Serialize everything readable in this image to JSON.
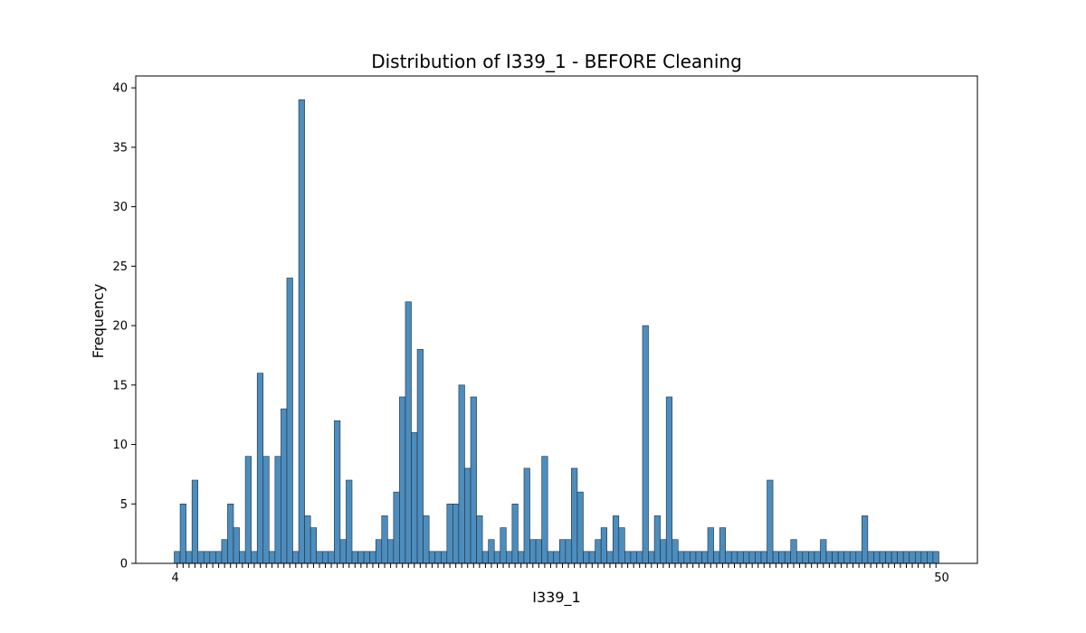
{
  "chart_data": {
    "type": "bar",
    "title": "Distribution of I339_1 - BEFORE Cleaning",
    "xlabel": "I339_1",
    "ylabel": "Frequency",
    "ylim": [
      0,
      41
    ],
    "yticks": [
      0,
      5,
      10,
      15,
      20,
      25,
      30,
      35,
      40
    ],
    "grid": false,
    "legend": "none",
    "bar_color": "#4c8dbd",
    "edge_color": "#1f2f3f",
    "values": [
      1,
      5,
      1,
      7,
      1,
      1,
      1,
      1,
      2,
      5,
      3,
      1,
      9,
      1,
      16,
      9,
      1,
      9,
      13,
      24,
      1,
      39,
      4,
      3,
      1,
      1,
      1,
      12,
      2,
      7,
      1,
      1,
      1,
      1,
      2,
      4,
      2,
      6,
      14,
      22,
      11,
      18,
      4,
      1,
      1,
      1,
      5,
      5,
      15,
      8,
      14,
      4,
      1,
      2,
      1,
      3,
      1,
      5,
      1,
      8,
      2,
      2,
      9,
      1,
      1,
      2,
      2,
      8,
      6,
      1,
      1,
      2,
      3,
      1,
      4,
      3,
      1,
      1,
      1,
      20,
      1,
      4,
      2,
      14,
      2,
      1,
      1,
      1,
      1,
      1,
      3,
      1,
      3,
      1,
      1,
      1,
      1,
      1,
      1,
      1,
      7,
      1,
      1,
      1,
      2,
      1,
      1,
      1,
      1,
      2,
      1,
      1,
      1,
      1,
      1,
      1,
      4,
      1,
      1,
      1,
      1,
      1,
      1,
      1,
      1,
      1,
      1,
      1,
      1
    ],
    "first_tick_label": "4",
    "last_tick_label": "50"
  }
}
